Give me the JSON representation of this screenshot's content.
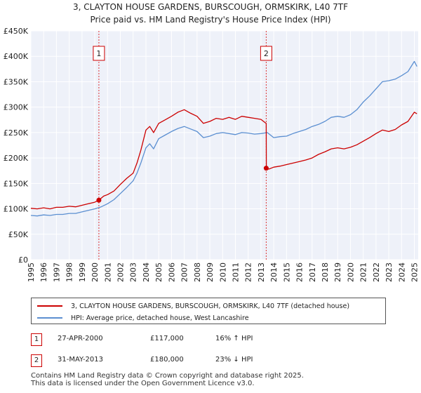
{
  "chart_data": {
    "type": "line",
    "title": "3, CLAYTON HOUSE GARDENS, BURSCOUGH, ORMSKIRK, L40 7TF",
    "subtitle": "Price paid vs. HM Land Registry's House Price Index (HPI)",
    "xlim": [
      1995,
      2025.3
    ],
    "ylim": [
      0,
      450000
    ],
    "y_ticks": [
      0,
      50000,
      100000,
      150000,
      200000,
      250000,
      300000,
      350000,
      400000,
      450000
    ],
    "y_tick_labels": [
      "£0",
      "£50K",
      "£100K",
      "£150K",
      "£200K",
      "£250K",
      "£300K",
      "£350K",
      "£400K",
      "£450K"
    ],
    "x_tick_labels": [
      "1995",
      "1996",
      "1997",
      "1998",
      "1999",
      "2000",
      "2001",
      "2002",
      "2003",
      "2004",
      "2005",
      "2006",
      "2007",
      "2008",
      "2009",
      "2010",
      "2011",
      "2012",
      "2013",
      "2014",
      "2015",
      "2016",
      "2017",
      "2018",
      "2019",
      "2020",
      "2021",
      "2022",
      "2023",
      "2024",
      "2025"
    ],
    "series": [
      {
        "name": "3, CLAYTON HOUSE GARDENS, BURSCOUGH, ORMSKIRK, L40 7TF (detached house)",
        "color": "#cc0000",
        "x": [
          1995.0,
          1995.5,
          1996.0,
          1996.5,
          1997.0,
          1997.5,
          1998.0,
          1998.5,
          1999.0,
          1999.5,
          2000.0,
          2000.32,
          2000.7,
          2001.0,
          2001.5,
          2002.0,
          2002.5,
          2003.0,
          2003.3,
          2003.6,
          2004.0,
          2004.3,
          2004.6,
          2005.0,
          2005.5,
          2006.0,
          2006.5,
          2007.0,
          2007.5,
          2008.0,
          2008.5,
          2009.0,
          2009.5,
          2010.0,
          2010.5,
          2011.0,
          2011.5,
          2012.0,
          2012.5,
          2013.0,
          2013.3,
          2013.41,
          2013.42,
          2013.6,
          2014.0,
          2014.5,
          2015.0,
          2015.5,
          2016.0,
          2016.5,
          2017.0,
          2017.5,
          2018.0,
          2018.5,
          2019.0,
          2019.5,
          2020.0,
          2020.5,
          2021.0,
          2021.5,
          2022.0,
          2022.5,
          2023.0,
          2023.5,
          2024.0,
          2024.5,
          2025.0,
          2025.2
        ],
        "values": [
          101000,
          100000,
          102000,
          100000,
          103000,
          103000,
          105000,
          104000,
          107000,
          110000,
          113000,
          117000,
          125000,
          128000,
          135000,
          148000,
          160000,
          170000,
          190000,
          215000,
          255000,
          262000,
          250000,
          268000,
          275000,
          282000,
          290000,
          295000,
          288000,
          282000,
          268000,
          272000,
          278000,
          276000,
          280000,
          276000,
          282000,
          280000,
          278000,
          276000,
          270000,
          268000,
          180000,
          178000,
          182000,
          184000,
          187000,
          190000,
          193000,
          196000,
          200000,
          207000,
          212000,
          218000,
          220000,
          218000,
          221000,
          226000,
          233000,
          240000,
          248000,
          255000,
          252000,
          256000,
          265000,
          272000,
          290000,
          287000
        ]
      },
      {
        "name": "HPI: Average price, detached house, West Lancashire",
        "color": "#5b8fd1",
        "x": [
          1995.0,
          1995.5,
          1996.0,
          1996.5,
          1997.0,
          1997.5,
          1998.0,
          1998.5,
          1999.0,
          1999.5,
          2000.0,
          2000.5,
          2001.0,
          2001.5,
          2002.0,
          2002.5,
          2003.0,
          2003.3,
          2003.6,
          2004.0,
          2004.3,
          2004.6,
          2005.0,
          2005.5,
          2006.0,
          2006.5,
          2007.0,
          2007.5,
          2008.0,
          2008.5,
          2009.0,
          2009.5,
          2010.0,
          2010.5,
          2011.0,
          2011.5,
          2012.0,
          2012.5,
          2013.0,
          2013.5,
          2014.0,
          2014.5,
          2015.0,
          2015.5,
          2016.0,
          2016.5,
          2017.0,
          2017.5,
          2018.0,
          2018.5,
          2019.0,
          2019.5,
          2020.0,
          2020.5,
          2021.0,
          2021.5,
          2022.0,
          2022.5,
          2023.0,
          2023.5,
          2024.0,
          2024.5,
          2025.0,
          2025.2
        ],
        "values": [
          87000,
          86000,
          88000,
          87000,
          89000,
          89000,
          91000,
          91000,
          94000,
          97000,
          100000,
          104000,
          110000,
          118000,
          130000,
          142000,
          155000,
          170000,
          190000,
          220000,
          228000,
          218000,
          238000,
          245000,
          252000,
          258000,
          262000,
          257000,
          252000,
          240000,
          243000,
          248000,
          250000,
          248000,
          246000,
          250000,
          249000,
          247000,
          248000,
          250000,
          240000,
          242000,
          243000,
          248000,
          252000,
          256000,
          262000,
          266000,
          272000,
          280000,
          282000,
          280000,
          285000,
          295000,
          310000,
          322000,
          336000,
          350000,
          352000,
          355000,
          362000,
          370000,
          390000,
          380000
        ]
      }
    ],
    "annotations": [
      {
        "label": "1",
        "x": 2000.32,
        "value": 117000
      },
      {
        "label": "2",
        "x": 2013.41,
        "value": 180000
      }
    ]
  },
  "legend": {
    "items": [
      {
        "label": "3, CLAYTON HOUSE GARDENS, BURSCOUGH, ORMSKIRK, L40 7TF (detached house)",
        "color": "#cc0000"
      },
      {
        "label": "HPI: Average price, detached house, West Lancashire",
        "color": "#5b8fd1"
      }
    ]
  },
  "transactions": [
    {
      "id": "1",
      "date": "27-APR-2000",
      "price": "£117,000",
      "hpi": "16% ↑ HPI"
    },
    {
      "id": "2",
      "date": "31-MAY-2013",
      "price": "£180,000",
      "hpi": "23% ↓ HPI"
    }
  ],
  "footer": {
    "line1": "Contains HM Land Registry data © Crown copyright and database right 2025.",
    "line2": "This data is licensed under the Open Government Licence v3.0."
  }
}
